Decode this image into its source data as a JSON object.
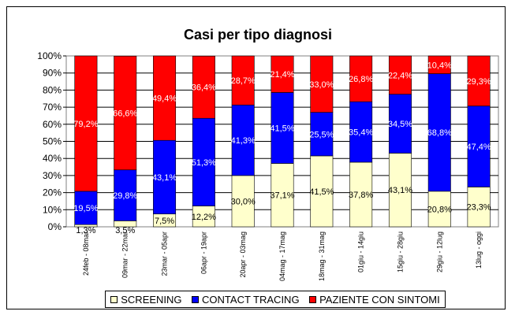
{
  "chart_data": {
    "type": "bar",
    "stacked": true,
    "percent": true,
    "title": "Casi per tipo diagnosi",
    "xlabel": "",
    "ylabel": "",
    "ylim": [
      0,
      100
    ],
    "yticks": [
      "0%",
      "10%",
      "20%",
      "30%",
      "40%",
      "50%",
      "60%",
      "70%",
      "80%",
      "90%",
      "100%"
    ],
    "grid": true,
    "legend_position": "bottom",
    "categories": [
      "24feb - 08mar",
      "09mar - 22mar",
      "23mar - 05apr",
      "06apr - 19apr",
      "20apr - 03mag",
      "04mag - 17mag",
      "18mag - 31mag",
      "01giu - 14giu",
      "15giu - 28giu",
      "29giu - 12lug",
      "13lug - oggi"
    ],
    "series": [
      {
        "name": "SCREENING",
        "color": "#ffffcc",
        "values": [
          1.3,
          3.5,
          7.5,
          12.2,
          30.0,
          37.1,
          41.5,
          37.8,
          43.1,
          20.8,
          23.3
        ],
        "labels": [
          "1,3%",
          "3,5%",
          "7,5%",
          "12,2%",
          "30,0%",
          "37,1%",
          "41,5%",
          "37,8%",
          "43,1%",
          "20,8%",
          "23,3%"
        ]
      },
      {
        "name": "CONTACT TRACING",
        "color": "#0000ff",
        "values": [
          19.5,
          29.8,
          43.1,
          51.3,
          41.3,
          41.5,
          25.5,
          35.4,
          34.5,
          68.8,
          47.4
        ],
        "labels": [
          "19,5%",
          "29,8%",
          "43,1%",
          "51,3%",
          "41,3%",
          "41,5%",
          "25,5%",
          "35,4%",
          "34,5%",
          "68,8%",
          "47,4%"
        ]
      },
      {
        "name": "PAZIENTE CON SINTOMI",
        "color": "#ff0000",
        "values": [
          79.2,
          66.6,
          49.4,
          36.4,
          28.7,
          21.4,
          33.0,
          26.8,
          22.4,
          10.4,
          29.3
        ],
        "labels": [
          "79,2%",
          "66,6%",
          "49,4%",
          "36,4%",
          "28,7%",
          "21,4%",
          "33,0%",
          "26,8%",
          "22,4%",
          "10,4%",
          "29,3%"
        ]
      }
    ]
  }
}
